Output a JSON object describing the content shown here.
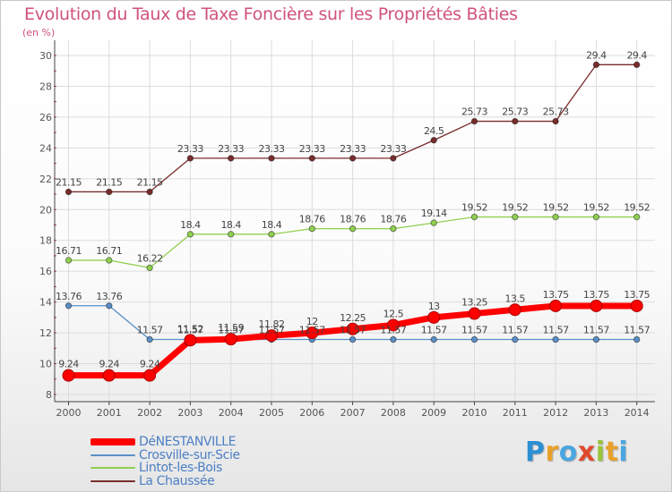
{
  "title": "Evolution du Taux de Taxe Foncière sur les Propriétés Bâties",
  "unit": "(en %)",
  "brand": {
    "letters": [
      "P",
      "r",
      "o",
      "x",
      "i",
      "t",
      "i"
    ],
    "colors": [
      "#2c8fd4",
      "#e8a22c",
      "#4aa6e0",
      "#e04a2c",
      "#9ac53c",
      "#e8a22c",
      "#4aa6e0"
    ]
  },
  "chart_data": {
    "type": "line",
    "title": "Evolution du Taux de Taxe Foncière sur les Propriétés Bâties",
    "ylabel": "(en %)",
    "xlabel": "",
    "ylim": [
      8,
      30
    ],
    "grid": true,
    "legend_position": "bottom-left",
    "x": [
      "2000",
      "2001",
      "2002",
      "2003",
      "2004",
      "2005",
      "2006",
      "2007",
      "2008",
      "2009",
      "2010",
      "2011",
      "2012",
      "2013",
      "2014"
    ],
    "y_ticks": [
      "8",
      "10",
      "12",
      "14",
      "16",
      "18",
      "20",
      "22",
      "24",
      "26",
      "28",
      "30"
    ],
    "series": [
      {
        "name": "La Chaussée",
        "color": "#7a2c2c",
        "values": [
          21.15,
          21.15,
          21.15,
          23.33,
          23.33,
          23.33,
          23.33,
          23.33,
          23.33,
          24.5,
          25.73,
          25.73,
          25.73,
          29.4,
          29.4
        ],
        "labels": [
          "21.15",
          "21.15",
          "21.15",
          "23.33",
          "23.33",
          "23.33",
          "23.33",
          "23.33",
          "23.33",
          "24.5",
          "25.73",
          "25.73",
          "25.73",
          "29.4",
          "29.4"
        ]
      },
      {
        "name": "Lintot-les-Bois",
        "color": "#90d050",
        "values": [
          16.71,
          16.71,
          16.22,
          18.4,
          18.4,
          18.4,
          18.76,
          18.76,
          18.76,
          19.14,
          19.52,
          19.52,
          19.52,
          19.52,
          19.52
        ],
        "labels": [
          "16.71",
          "16.71",
          "16.22",
          "18.4",
          "18.4",
          "18.4",
          "18.76",
          "18.76",
          "18.76",
          "19.14",
          "19.52",
          "19.52",
          "19.52",
          "19.52",
          "19.52"
        ]
      },
      {
        "name": "Crosville-sur-Scie",
        "color": "#5a8fc8",
        "values": [
          13.76,
          13.76,
          11.57,
          11.57,
          11.57,
          11.57,
          11.57,
          11.57,
          11.57,
          11.57,
          11.57,
          11.57,
          11.57,
          11.57,
          11.57
        ],
        "labels": [
          "13.76",
          "13.76",
          "11.57",
          "11.57",
          "11.57",
          "11.57",
          "11.57",
          "11.57",
          "11.57",
          "11.57",
          "11.57",
          "11.57",
          "11.57",
          "11.57",
          "11.57"
        ]
      },
      {
        "name": "DéNESTANVILLE",
        "color": "#ff0000",
        "values": [
          9.24,
          9.24,
          9.24,
          11.52,
          11.59,
          11.82,
          12,
          12.25,
          12.5,
          13,
          13.25,
          13.5,
          13.75,
          13.75,
          13.75
        ],
        "labels": [
          "9.24",
          "9.24",
          "9.24",
          "11.52",
          "11.59",
          "11.82",
          "12",
          "12.25",
          "12.5",
          "13",
          "13.25",
          "13.5",
          "13.75",
          "13.75",
          "13.75"
        ]
      }
    ]
  }
}
